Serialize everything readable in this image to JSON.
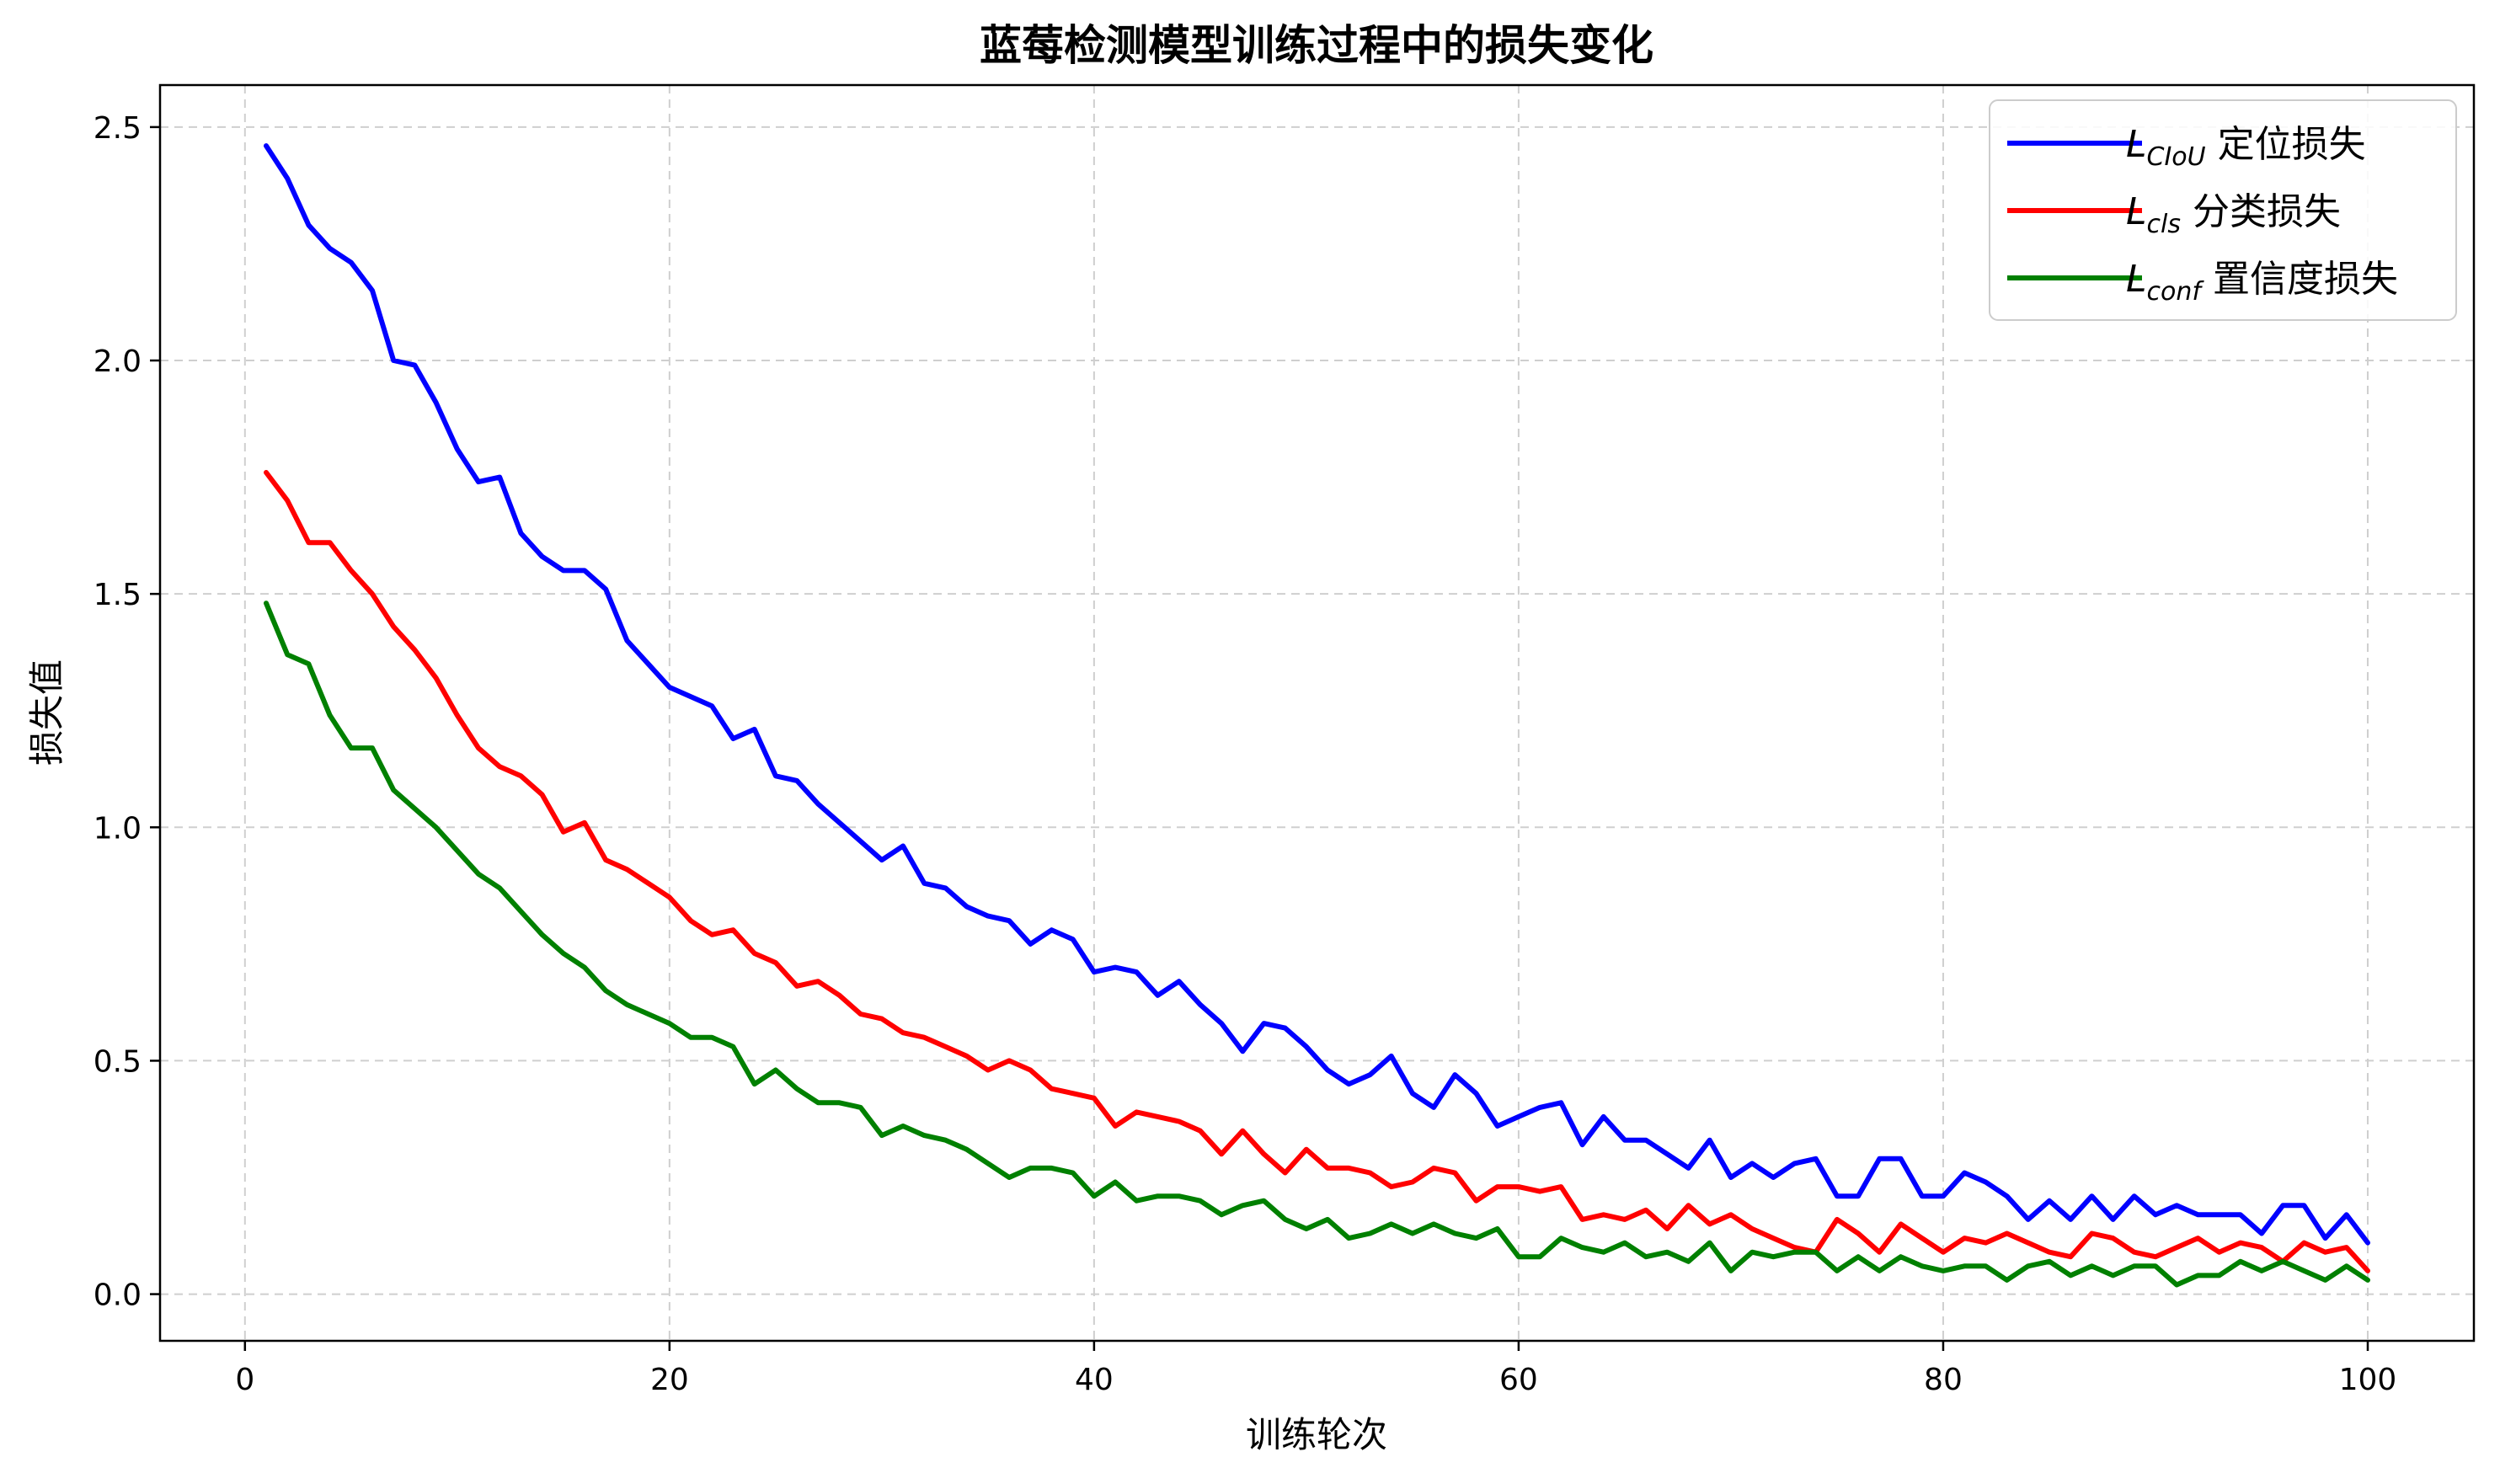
{
  "chart_data": {
    "type": "line",
    "title": "蓝莓检测模型训练过程中的损失变化",
    "xlabel": "训练轮次",
    "ylabel": "损失值",
    "xlim": [
      -4,
      105
    ],
    "ylim": [
      -0.1,
      2.59
    ],
    "xticks": [
      0,
      20,
      40,
      60,
      80,
      100
    ],
    "xtick_labels": [
      "0",
      "20",
      "40",
      "60",
      "80",
      "100"
    ],
    "yticks": [
      0.0,
      0.5,
      1.0,
      1.5,
      2.0,
      2.5
    ],
    "ytick_labels": [
      "0.0",
      "0.5",
      "1.0",
      "1.5",
      "2.0",
      "2.5"
    ],
    "grid": true,
    "legend_position": "top-right",
    "x": [
      1,
      2,
      3,
      4,
      5,
      6,
      7,
      8,
      9,
      10,
      11,
      12,
      13,
      14,
      15,
      16,
      17,
      18,
      19,
      20,
      21,
      22,
      23,
      24,
      25,
      26,
      27,
      28,
      29,
      30,
      31,
      32,
      33,
      34,
      35,
      36,
      37,
      38,
      39,
      40,
      41,
      42,
      43,
      44,
      45,
      46,
      47,
      48,
      49,
      50,
      51,
      52,
      53,
      54,
      55,
      56,
      57,
      58,
      59,
      60,
      61,
      62,
      63,
      64,
      65,
      66,
      67,
      68,
      69,
      70,
      71,
      72,
      73,
      74,
      75,
      76,
      77,
      78,
      79,
      80,
      81,
      82,
      83,
      84,
      85,
      86,
      87,
      88,
      89,
      90,
      91,
      92,
      93,
      94,
      95,
      96,
      97,
      98,
      99,
      100
    ],
    "series": [
      {
        "name_main": "L",
        "name_sub": "CIoU",
        "name_suffix": " 定位损失",
        "color": "#0000ff",
        "values": [
          2.46,
          2.39,
          2.29,
          2.24,
          2.21,
          2.15,
          2.0,
          1.99,
          1.91,
          1.81,
          1.74,
          1.75,
          1.63,
          1.58,
          1.55,
          1.55,
          1.51,
          1.4,
          1.35,
          1.3,
          1.28,
          1.26,
          1.19,
          1.21,
          1.11,
          1.1,
          1.05,
          1.01,
          0.97,
          0.93,
          0.96,
          0.88,
          0.87,
          0.83,
          0.81,
          0.8,
          0.75,
          0.78,
          0.76,
          0.69,
          0.7,
          0.69,
          0.64,
          0.67,
          0.62,
          0.58,
          0.52,
          0.58,
          0.57,
          0.53,
          0.48,
          0.45,
          0.47,
          0.51,
          0.43,
          0.4,
          0.47,
          0.43,
          0.36,
          0.38,
          0.4,
          0.41,
          0.32,
          0.38,
          0.33,
          0.33,
          0.3,
          0.27,
          0.33,
          0.25,
          0.28,
          0.25,
          0.28,
          0.29,
          0.21,
          0.21,
          0.29,
          0.29,
          0.21,
          0.21,
          0.26,
          0.24,
          0.21,
          0.16,
          0.2,
          0.16,
          0.21,
          0.16,
          0.21,
          0.17,
          0.19,
          0.17,
          0.17,
          0.17,
          0.13,
          0.19,
          0.19,
          0.12,
          0.17,
          0.11
        ]
      },
      {
        "name_main": "L",
        "name_sub": "cls",
        "name_suffix": " 分类损失",
        "color": "#ff0000",
        "values": [
          1.76,
          1.7,
          1.61,
          1.61,
          1.55,
          1.5,
          1.43,
          1.38,
          1.32,
          1.24,
          1.17,
          1.13,
          1.11,
          1.07,
          0.99,
          1.01,
          0.93,
          0.91,
          0.88,
          0.85,
          0.8,
          0.77,
          0.78,
          0.73,
          0.71,
          0.66,
          0.67,
          0.64,
          0.6,
          0.59,
          0.56,
          0.55,
          0.53,
          0.51,
          0.48,
          0.5,
          0.48,
          0.44,
          0.43,
          0.42,
          0.36,
          0.39,
          0.38,
          0.37,
          0.35,
          0.3,
          0.35,
          0.3,
          0.26,
          0.31,
          0.27,
          0.27,
          0.26,
          0.23,
          0.24,
          0.27,
          0.26,
          0.2,
          0.23,
          0.23,
          0.22,
          0.23,
          0.16,
          0.17,
          0.16,
          0.18,
          0.14,
          0.19,
          0.15,
          0.17,
          0.14,
          0.12,
          0.1,
          0.09,
          0.16,
          0.13,
          0.09,
          0.15,
          0.12,
          0.09,
          0.12,
          0.11,
          0.13,
          0.11,
          0.09,
          0.08,
          0.13,
          0.12,
          0.09,
          0.08,
          0.1,
          0.12,
          0.09,
          0.11,
          0.1,
          0.07,
          0.11,
          0.09,
          0.1,
          0.05
        ]
      },
      {
        "name_main": "L",
        "name_sub": "conf",
        "name_suffix": " 置信度损失",
        "color": "#008000",
        "values": [
          1.48,
          1.37,
          1.35,
          1.24,
          1.17,
          1.17,
          1.08,
          1.04,
          1.0,
          0.95,
          0.9,
          0.87,
          0.82,
          0.77,
          0.73,
          0.7,
          0.65,
          0.62,
          0.6,
          0.58,
          0.55,
          0.55,
          0.53,
          0.45,
          0.48,
          0.44,
          0.41,
          0.41,
          0.4,
          0.34,
          0.36,
          0.34,
          0.33,
          0.31,
          0.28,
          0.25,
          0.27,
          0.27,
          0.26,
          0.21,
          0.24,
          0.2,
          0.21,
          0.21,
          0.2,
          0.17,
          0.19,
          0.2,
          0.16,
          0.14,
          0.16,
          0.12,
          0.13,
          0.15,
          0.13,
          0.15,
          0.13,
          0.12,
          0.14,
          0.08,
          0.08,
          0.12,
          0.1,
          0.09,
          0.11,
          0.08,
          0.09,
          0.07,
          0.11,
          0.05,
          0.09,
          0.08,
          0.09,
          0.09,
          0.05,
          0.08,
          0.05,
          0.08,
          0.06,
          0.05,
          0.06,
          0.06,
          0.03,
          0.06,
          0.07,
          0.04,
          0.06,
          0.04,
          0.06,
          0.06,
          0.02,
          0.04,
          0.04,
          0.07,
          0.05,
          0.07,
          0.05,
          0.03,
          0.06,
          0.03
        ]
      }
    ]
  }
}
